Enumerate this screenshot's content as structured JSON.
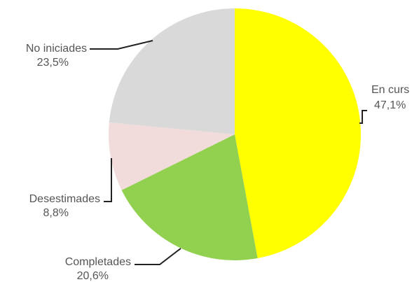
{
  "chart_data": {
    "type": "pie",
    "unit": "%",
    "slices": [
      {
        "label": "En curs",
        "value": 47.1,
        "value_text": "47,1%",
        "color": "#ffff00"
      },
      {
        "label": "Completades",
        "value": 20.6,
        "value_text": "20,6%",
        "color": "#92d050"
      },
      {
        "label": "Desestimades",
        "value": 8.8,
        "value_text": "8,8%",
        "color": "#f2dcdb"
      },
      {
        "label": "No iniciades",
        "value": 23.5,
        "value_text": "23,5%",
        "color": "#d9d9d9"
      }
    ],
    "legend": "none",
    "labels": "outside with leader lines"
  }
}
